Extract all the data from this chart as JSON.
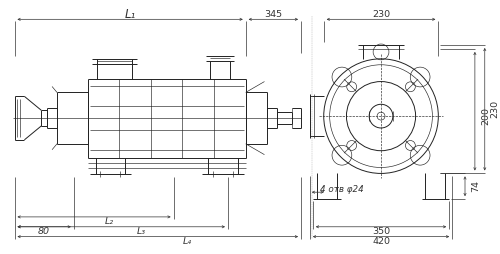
{
  "fig_width": 5.0,
  "fig_height": 2.54,
  "dpi": 100,
  "bg_color": "#ffffff",
  "line_color": "#222222",
  "dim_color": "#333333",
  "font_size_dim": 6.8,
  "font_size_label": 8.5,
  "dim_L1": "L₁",
  "dim_345": "345",
  "dim_230_top": "230",
  "dim_80": "80",
  "dim_L2": "L₂",
  "dim_L3": "L₃",
  "dim_L4": "L₄",
  "dim_4otv": "4 отв φ24",
  "dim_350": "350",
  "dim_420": "420",
  "dim_230_right": "230",
  "dim_200": "200",
  "dim_74": "74"
}
